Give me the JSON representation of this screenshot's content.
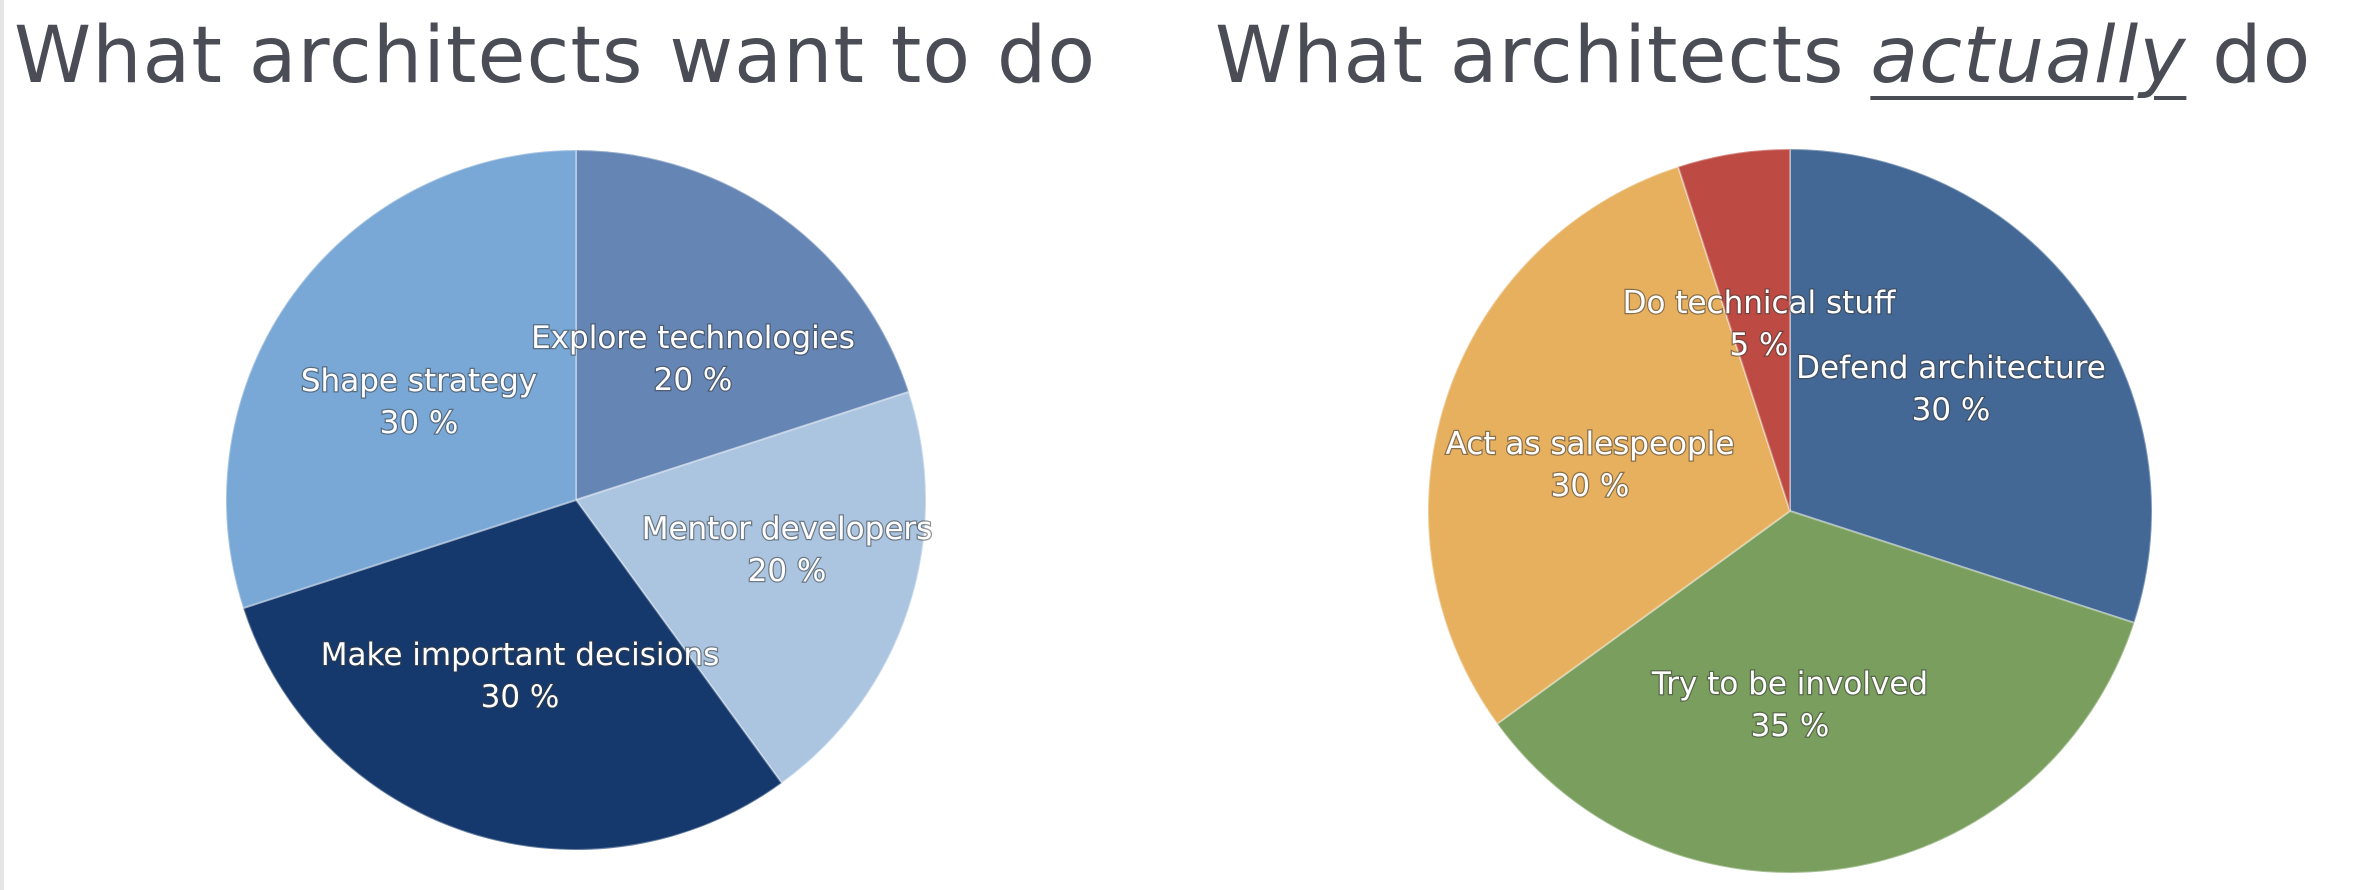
{
  "titles": {
    "left": "What architects want to do",
    "right_before": "What architects ",
    "right_emphasis": "actually",
    "right_after": " do"
  },
  "chart_data": [
    {
      "type": "pie",
      "title": "What architects want to do",
      "slices": [
        {
          "label": "Explore technologies",
          "value": 20,
          "value_label": "20 %",
          "color": "#6585b4"
        },
        {
          "label": "Mentor developers",
          "value": 20,
          "value_label": "20 %",
          "color": "#abc5e0"
        },
        {
          "label": "Make important decisions",
          "value": 30,
          "value_label": "30 %",
          "color": "#15396c"
        },
        {
          "label": "Shape strategy",
          "value": 30,
          "value_label": "30 %",
          "color": "#7aa8d6"
        }
      ]
    },
    {
      "type": "pie",
      "title": "What architects actually do",
      "slices": [
        {
          "label": "Defend architecture",
          "value": 30,
          "value_label": "30 %",
          "color": "#436896"
        },
        {
          "label": "Try to be involved",
          "value": 35,
          "value_label": "35 %",
          "color": "#7a9e5d"
        },
        {
          "label": "Act as salespeople",
          "value": 30,
          "value_label": "30 %",
          "color": "#e6b05f"
        },
        {
          "label": "Do technical stuff",
          "value": 5,
          "value_label": "5 %",
          "color": "#bd4b43"
        }
      ]
    }
  ]
}
